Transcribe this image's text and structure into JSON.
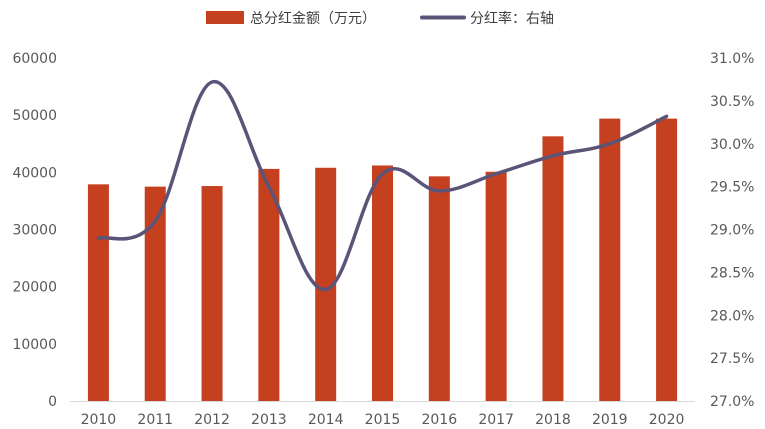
{
  "chart_data": {
    "type": "bar+line",
    "categories": [
      "2010",
      "2011",
      "2012",
      "2013",
      "2014",
      "2015",
      "2016",
      "2017",
      "2018",
      "2019",
      "2020"
    ],
    "series": [
      {
        "name": "总分红金额（万元）",
        "type": "bar",
        "axis": "left",
        "color": "#c5401f",
        "values": [
          37900,
          37500,
          37600,
          40600,
          40800,
          41200,
          39300,
          40100,
          46300,
          49400,
          49400
        ]
      },
      {
        "name": "分红率：右轴",
        "type": "line",
        "axis": "right",
        "color": "#5a5478",
        "smooth": true,
        "values": [
          28.9,
          29.1,
          30.72,
          29.5,
          28.3,
          29.65,
          29.45,
          29.65,
          29.86,
          30.0,
          30.32
        ]
      }
    ],
    "y_left": {
      "ticks": [
        "0",
        "10000",
        "20000",
        "30000",
        "40000",
        "50000",
        "60000"
      ],
      "min": 0,
      "max": 60000
    },
    "y_right": {
      "ticks": [
        "27.0%",
        "27.5%",
        "28.0%",
        "28.5%",
        "29.0%",
        "29.5%",
        "30.0%",
        "30.5%",
        "31.0%"
      ],
      "min": 27.0,
      "max": 31.0
    },
    "grid": false,
    "legend": "top-center"
  }
}
